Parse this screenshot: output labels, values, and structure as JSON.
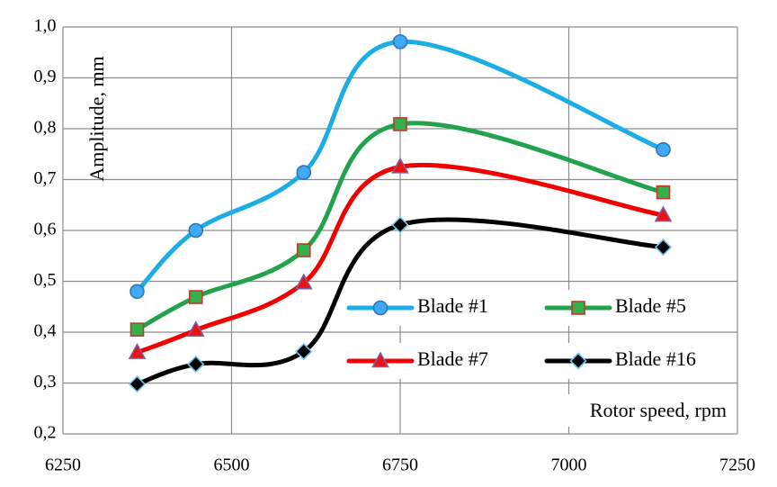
{
  "chart_data": {
    "type": "line",
    "smoothed": true,
    "title": "",
    "xlabel": "Rotor speed, rpm",
    "ylabel": "Amplitude, mm",
    "xlim": [
      6250,
      7250
    ],
    "ylim": [
      0.2,
      1.0
    ],
    "x_ticks": [
      "6250",
      "6500",
      "6750",
      "7000",
      "7250"
    ],
    "y_ticks": [
      "0,2",
      "0,3",
      "0,4",
      "0,5",
      "0,6",
      "0,7",
      "0,8",
      "0,9",
      "1,0"
    ],
    "x_tick_values": [
      6250,
      6500,
      6750,
      7000,
      7250
    ],
    "y_tick_values": [
      0.2,
      0.3,
      0.4,
      0.5,
      0.6,
      0.7,
      0.8,
      0.9,
      1.0
    ],
    "grid": true,
    "legend_position": "bottom-right",
    "series": [
      {
        "name": "Blade #1",
        "color": "#1CADE4",
        "fill": "#3FA9F5",
        "marker_stroke": "#2E75B6",
        "marker": "circle",
        "x": [
          6360,
          6447,
          6607,
          6750,
          7140
        ],
        "values": [
          0.48,
          0.6,
          0.714,
          0.971,
          0.759
        ]
      },
      {
        "name": "Blade #5",
        "color": "#23A24D",
        "fill": "#33B04A",
        "marker_stroke": "#C0392B",
        "marker": "square",
        "x": [
          6360,
          6447,
          6607,
          6750,
          7140
        ],
        "values": [
          0.405,
          0.469,
          0.561,
          0.809,
          0.675
        ]
      },
      {
        "name": "Blade #7",
        "color": "#F00000",
        "fill": "#EE1111",
        "marker_stroke": "#7B5EA7",
        "marker": "triangle",
        "x": [
          6360,
          6447,
          6607,
          6750,
          7140
        ],
        "values": [
          0.36,
          0.404,
          0.497,
          0.725,
          0.63
        ]
      },
      {
        "name": "Blade #16",
        "color": "#000000",
        "fill": "#000000",
        "marker_stroke": "#6FC3E8",
        "marker": "diamond",
        "x": [
          6360,
          6447,
          6607,
          6750,
          7140
        ],
        "values": [
          0.298,
          0.337,
          0.362,
          0.611,
          0.567
        ]
      }
    ]
  }
}
